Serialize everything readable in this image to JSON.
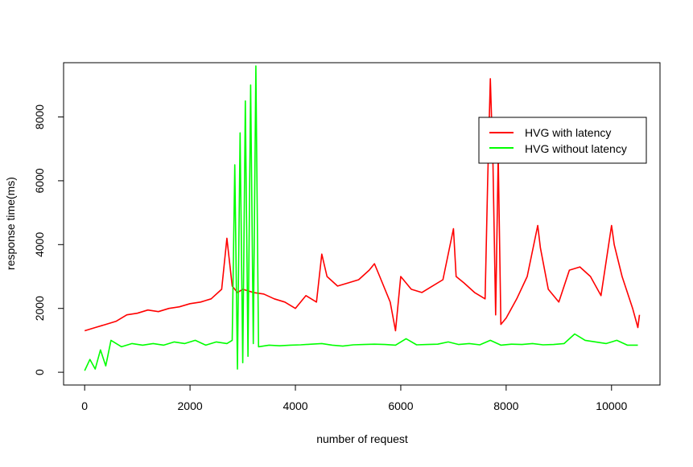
{
  "chart_data": {
    "type": "line",
    "title": "",
    "xlabel": "number of request",
    "ylabel": "response time(ms)",
    "xlim": [
      -400,
      10920
    ],
    "ylim": [
      -400,
      9700
    ],
    "x_ticks": [
      0,
      2000,
      4000,
      6000,
      8000,
      10000
    ],
    "y_ticks": [
      0,
      2000,
      4000,
      6000,
      8000
    ],
    "x_tick_labels": [
      "0",
      "2000",
      "4000",
      "6000",
      "8000",
      "10000"
    ],
    "y_tick_labels": [
      "0",
      "2000",
      "4000",
      "6000",
      "8000"
    ],
    "grid": false,
    "legend_position": "top-right",
    "series": [
      {
        "name": "HVG with latency",
        "color": "#ff0000",
        "x": [
          0,
          200,
          400,
          600,
          800,
          1000,
          1200,
          1400,
          1600,
          1800,
          2000,
          2200,
          2400,
          2600,
          2700,
          2800,
          2900,
          3000,
          3200,
          3400,
          3600,
          3800,
          4000,
          4200,
          4400,
          4500,
          4600,
          4800,
          5000,
          5200,
          5400,
          5500,
          5600,
          5800,
          5900,
          6000,
          6100,
          6200,
          6400,
          6600,
          6800,
          7000,
          7050,
          7200,
          7400,
          7600,
          7650,
          7700,
          7750,
          7800,
          7850,
          7900,
          8000,
          8200,
          8400,
          8600,
          8650,
          8800,
          9000,
          9200,
          9400,
          9600,
          9800,
          10000,
          10050,
          10200,
          10400,
          10500,
          10530
        ],
        "y": [
          1300,
          1400,
          1500,
          1600,
          1800,
          1850,
          1950,
          1900,
          2000,
          2050,
          2150,
          2200,
          2300,
          2600,
          4200,
          2700,
          2500,
          2600,
          2500,
          2450,
          2300,
          2200,
          2000,
          2400,
          2200,
          3700,
          3000,
          2700,
          2800,
          2900,
          3200,
          3400,
          3000,
          2200,
          1300,
          3000,
          2800,
          2600,
          2500,
          2700,
          2900,
          4500,
          3000,
          2800,
          2500,
          2300,
          6000,
          9200,
          6500,
          1800,
          6800,
          1500,
          1700,
          2300,
          3000,
          4600,
          3900,
          2600,
          2200,
          3200,
          3300,
          3000,
          2400,
          4600,
          4000,
          3000,
          2000,
          1400,
          1800
        ]
      },
      {
        "name": "HVG without latency",
        "color": "#00ff00",
        "x": [
          0,
          100,
          200,
          300,
          400,
          500,
          700,
          900,
          1100,
          1300,
          1500,
          1700,
          1900,
          2100,
          2300,
          2500,
          2700,
          2800,
          2850,
          2900,
          2950,
          3000,
          3050,
          3100,
          3150,
          3200,
          3250,
          3300,
          3500,
          3700,
          3900,
          4100,
          4300,
          4500,
          4700,
          4900,
          5100,
          5300,
          5500,
          5700,
          5900,
          6100,
          6300,
          6500,
          6700,
          6900,
          7100,
          7300,
          7500,
          7700,
          7900,
          8100,
          8300,
          8500,
          8700,
          8900,
          9100,
          9300,
          9400,
          9500,
          9700,
          9900,
          10100,
          10300,
          10500
        ],
        "y": [
          50,
          400,
          100,
          700,
          200,
          1000,
          800,
          900,
          850,
          900,
          850,
          950,
          900,
          1000,
          850,
          950,
          900,
          1000,
          6500,
          100,
          7500,
          300,
          8500,
          500,
          9000,
          900,
          9600,
          800,
          850,
          830,
          850,
          860,
          880,
          900,
          850,
          820,
          860,
          870,
          880,
          870,
          850,
          1050,
          860,
          870,
          880,
          950,
          870,
          900,
          860,
          1000,
          850,
          880,
          870,
          900,
          860,
          870,
          900,
          1200,
          1100,
          1000,
          950,
          900,
          1000,
          850,
          850
        ]
      }
    ]
  }
}
